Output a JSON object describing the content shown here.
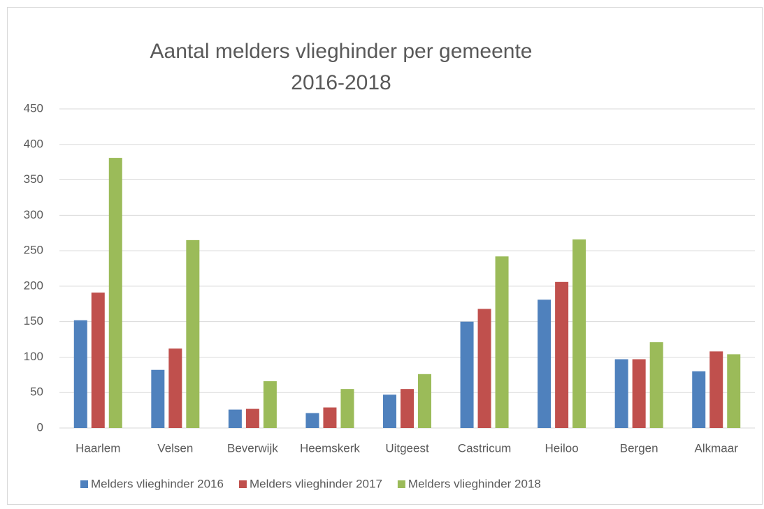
{
  "chart_data": {
    "type": "bar",
    "title": [
      "Aantal melders vlieghinder per gemeente",
      "2016-2018"
    ],
    "categories": [
      "Haarlem",
      "Velsen",
      "Beverwijk",
      "Heemskerk",
      "Uitgeest",
      "Castricum",
      "Heiloo",
      "Bergen",
      "Alkmaar"
    ],
    "series": [
      {
        "name": "Melders vlieghinder 2016",
        "color": "#4f81bd",
        "values": [
          152,
          82,
          26,
          21,
          47,
          150,
          181,
          97,
          80
        ]
      },
      {
        "name": "Melders vlieghinder 2017",
        "color": "#c0504d",
        "values": [
          191,
          112,
          27,
          29,
          55,
          168,
          206,
          97,
          108
        ]
      },
      {
        "name": "Melders vlieghinder 2018",
        "color": "#9bbb59",
        "values": [
          381,
          265,
          66,
          55,
          76,
          242,
          266,
          121,
          104
        ]
      }
    ],
    "ylim": [
      0,
      450
    ],
    "yticks": [
      0,
      50,
      100,
      150,
      200,
      250,
      300,
      350,
      400,
      450
    ],
    "grid": true,
    "legend": "bottom"
  }
}
